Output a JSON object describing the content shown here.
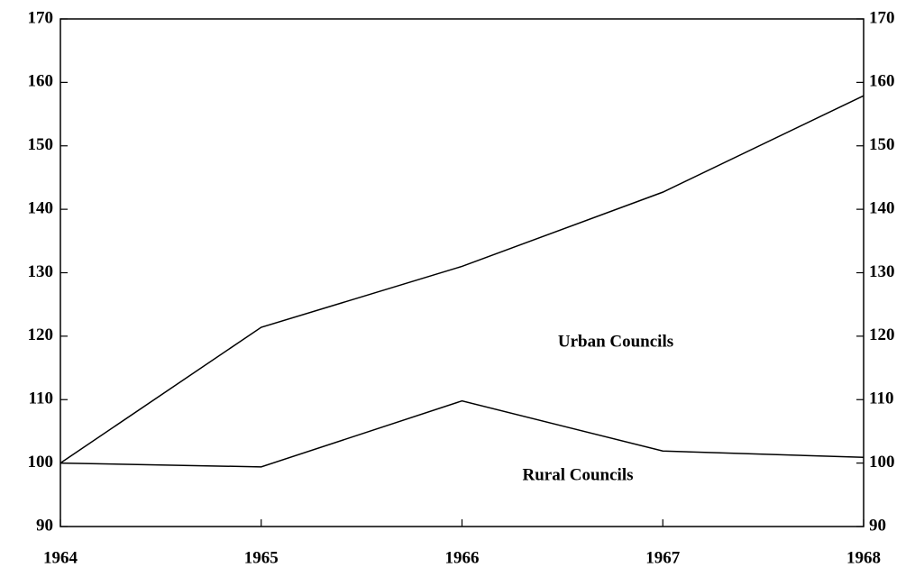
{
  "chart_data": {
    "type": "line",
    "x": [
      1964,
      1965,
      1966,
      1967,
      1968
    ],
    "series": [
      {
        "name": "Urban Councils",
        "color": "#000000",
        "values": [
          100,
          121.4,
          131,
          142.7,
          157.9
        ]
      },
      {
        "name": "Rural Councils",
        "color": "#000000",
        "values": [
          100,
          99.4,
          109.8,
          101.9,
          100.9
        ]
      }
    ],
    "xlim": [
      1964,
      1968
    ],
    "xticks": [
      1964,
      1965,
      1966,
      1967,
      1968
    ],
    "ylim": [
      90,
      170
    ],
    "yticks": [
      90,
      100,
      110,
      120,
      130,
      140,
      150,
      160,
      170
    ],
    "y2lim": [
      90,
      170
    ],
    "y2ticks": [
      90,
      100,
      110,
      120,
      130,
      140,
      150,
      160,
      170
    ]
  }
}
